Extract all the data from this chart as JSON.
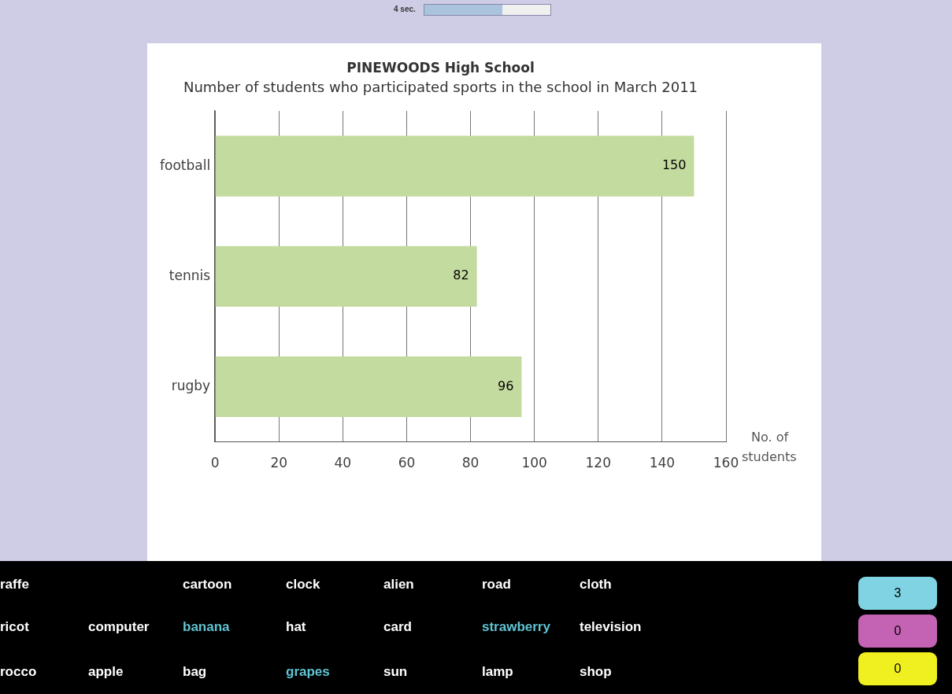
{
  "chart_data": {
    "type": "bar",
    "orientation": "horizontal",
    "title": "PINEWOODS High School",
    "subtitle": "Number of students who participated sports in the school in March 2011",
    "categories": [
      "football",
      "tennis",
      "rugby"
    ],
    "values": [
      150,
      82,
      96
    ],
    "color": "#c4dba0",
    "data_labels": true,
    "xlabel": "No. of students",
    "xlim": [
      0,
      160
    ],
    "xticks": [
      0,
      20,
      40,
      60,
      80,
      100,
      120,
      140,
      160
    ],
    "grid": "x",
    "legend": false,
    "annotations": [
      "4 sec.",
      "raffe",
      "cartoon",
      "clock",
      "alien",
      "road",
      "cloth",
      "ricot",
      "computer",
      "banana",
      "hat",
      "card",
      "strawberry",
      "television",
      "rocco",
      "apple",
      "bag",
      "grapes",
      "sun",
      "lamp",
      "shop",
      "3",
      "0",
      "0"
    ]
  }
}
